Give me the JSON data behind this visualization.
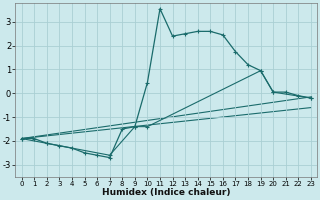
{
  "xlabel": "Humidex (Indice chaleur)",
  "background_color": "#cce9ec",
  "grid_color": "#aacfd4",
  "line_color": "#1a6b6b",
  "xlim": [
    -0.5,
    23.5
  ],
  "ylim": [
    -3.5,
    3.8
  ],
  "yticks": [
    -3,
    -2,
    -1,
    0,
    1,
    2,
    3
  ],
  "xticks": [
    0,
    1,
    2,
    3,
    4,
    5,
    6,
    7,
    8,
    9,
    10,
    11,
    12,
    13,
    14,
    15,
    16,
    17,
    18,
    19,
    20,
    21,
    22,
    23
  ],
  "series1_x": [
    0,
    1,
    2,
    3,
    4,
    5,
    6,
    7,
    8,
    9,
    10,
    11,
    12,
    13,
    14,
    15,
    16,
    17,
    18,
    19,
    20,
    21,
    22,
    23
  ],
  "series1_y": [
    -1.9,
    -1.9,
    -2.1,
    -2.2,
    -2.3,
    -2.5,
    -2.6,
    -2.7,
    -1.5,
    -1.4,
    0.45,
    3.55,
    2.4,
    2.5,
    2.6,
    2.6,
    2.45,
    1.75,
    1.2,
    0.95,
    0.05,
    0.05,
    -0.1,
    -0.2
  ],
  "series2_x": [
    0,
    2,
    7,
    9,
    10,
    19,
    20,
    23
  ],
  "series2_y": [
    -1.9,
    -2.1,
    -2.6,
    -1.4,
    -1.4,
    0.95,
    0.05,
    -0.2
  ],
  "series3_x": [
    0,
    23
  ],
  "series3_y": [
    -1.9,
    -0.15
  ],
  "series4_x": [
    0,
    23
  ],
  "series4_y": [
    -1.9,
    -0.6
  ]
}
